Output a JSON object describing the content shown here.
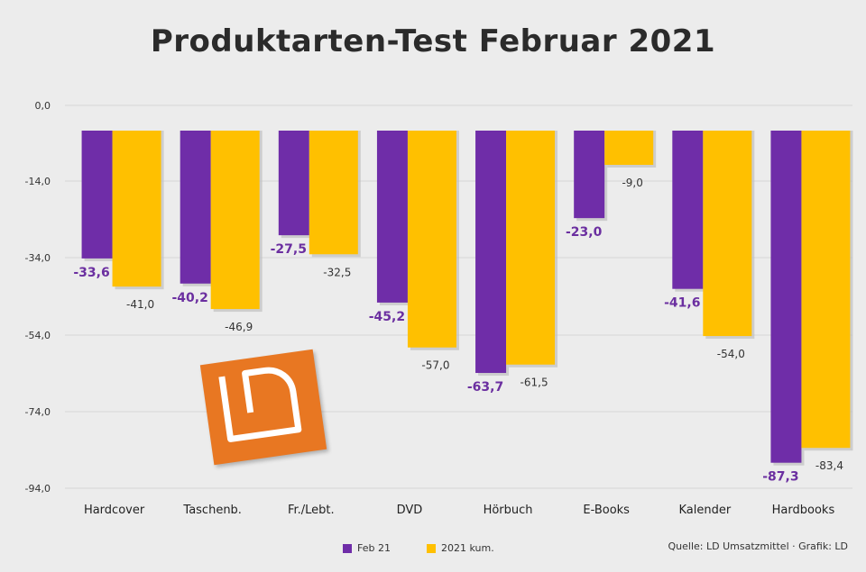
{
  "chart_data": {
    "type": "bar",
    "title": "Produktarten-Test Februar 2021",
    "categories": [
      "Hardcover",
      "Taschenb.",
      "Fr./Lebt.",
      "DVD",
      "Hörbuch",
      "E-Books",
      "Kalender",
      "Hardbooks"
    ],
    "series": [
      {
        "name": "Feb 21",
        "color": "#6f2da8",
        "values": [
          -33.6,
          -40.2,
          -27.5,
          -45.2,
          -63.7,
          -23.0,
          -41.6,
          -87.3
        ],
        "labels": [
          "-33,6",
          "-40,2",
          "-27,5",
          "-45,2",
          "-63,7",
          "-23,0",
          "-41,6",
          "-87,3"
        ]
      },
      {
        "name": "2021 kum.",
        "color": "#ffc000",
        "values": [
          -41.0,
          -46.9,
          -32.5,
          -57.0,
          -61.5,
          -9.0,
          -54.0,
          -83.4
        ],
        "labels": [
          "-41,0",
          "-46,9",
          "-32,5",
          "-57,0",
          "-61,5",
          "-9,0",
          "-54,0",
          "-83,4"
        ]
      }
    ],
    "yticks": [
      "0,0",
      "-14,0",
      "-34,0",
      "-54,0",
      "-74,0",
      "-94,0"
    ],
    "ylim": [
      -94,
      0
    ],
    "grid": true,
    "legend": "bottom-center"
  },
  "source": "Quelle: LD Umsatzmittel · Grafik: LD",
  "logo": {
    "name": "ld-logo",
    "text": "LD",
    "color": "#e87722"
  }
}
